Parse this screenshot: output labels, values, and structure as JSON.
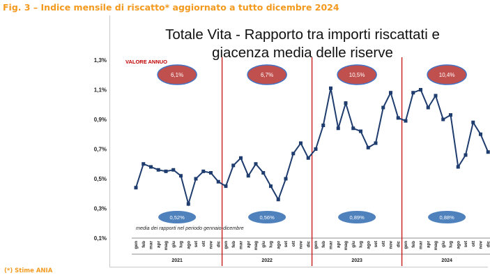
{
  "caption": "Fig. 3 – Indice mensile di riscatto* aggiornato a tutto dicembre 2024",
  "footnote": "(*) Stime ANIA",
  "colors": {
    "caption": "#f39a1e",
    "line": "#1f3c6e",
    "annual_ellipse_fill": "#c0504d",
    "annual_ellipse_stroke": "#4472c4",
    "period_ellipse_fill": "#4f81bd",
    "year_separator": "#c00000",
    "valore_annuo_label": "#c00000"
  },
  "chart_data": {
    "type": "line",
    "title_line1": "Totale Vita - Rapporto tra importi riscattati e",
    "title_line2": "giacenza media delle riserve",
    "y_ticks": [
      "1,3%",
      "1,1%",
      "0,9%",
      "0,7%",
      "0,5%",
      "0,3%",
      "0,1%"
    ],
    "ylim": [
      0.1,
      1.3
    ],
    "months": [
      "gen",
      "feb",
      "mar",
      "apr",
      "mag",
      "giu",
      "lug",
      "ago",
      "set",
      "ott",
      "nov",
      "dic"
    ],
    "years": [
      "2021",
      "2022",
      "2023",
      "2024"
    ],
    "series": [
      {
        "values": [
          0.44,
          0.6,
          0.58,
          0.56,
          0.55,
          0.56,
          0.52,
          0.33,
          0.5,
          0.55,
          0.54,
          0.48,
          0.45,
          0.59,
          0.64,
          0.52,
          0.6,
          0.54,
          0.45,
          0.36,
          0.5,
          0.67,
          0.74,
          0.64,
          0.7,
          0.86,
          1.11,
          0.84,
          1.01,
          0.84,
          0.82,
          0.71,
          0.74,
          0.98,
          1.08,
          0.91,
          0.89,
          1.08,
          1.1,
          0.98,
          1.06,
          0.9,
          0.93,
          0.58,
          0.66,
          0.88,
          0.8,
          0.68
        ]
      }
    ],
    "annual_label": "VALORE ANNUO",
    "annual_values": [
      "6,1%",
      "6,7%",
      "10,5%",
      "10,4%"
    ],
    "period_values": [
      "0,52%",
      "0,56%",
      "0,89%",
      "0,88%"
    ],
    "period_note": "media dei rapporti nel periodo gennaio-dicembre",
    "grid": false
  }
}
